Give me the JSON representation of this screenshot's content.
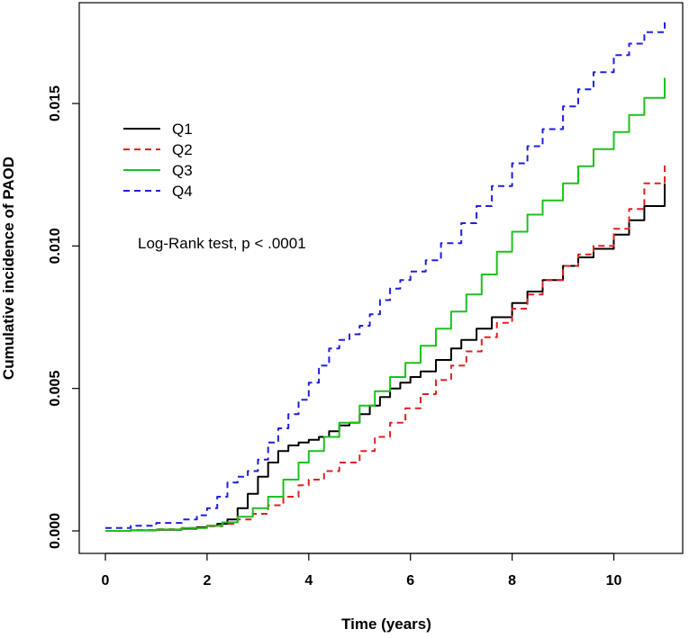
{
  "chart_data": {
    "type": "line",
    "title": "",
    "xlabel": "Time (years)",
    "ylabel": "Cumulative incidence of PAOD",
    "xlim": [
      0,
      11
    ],
    "ylim": [
      0,
      0.018
    ],
    "x_ticks": [
      0,
      2,
      4,
      6,
      8,
      10
    ],
    "x_tick_labels": [
      "0",
      "2",
      "4",
      "6",
      "8",
      "10"
    ],
    "y_ticks": [
      0,
      0.005,
      0.01,
      0.015
    ],
    "y_tick_labels": [
      "0.000",
      "0.005",
      "0.010",
      "0.015"
    ],
    "annotation": "Log-Rank test, p < .0001",
    "legend_position": "top-left",
    "series": [
      {
        "name": "Q1",
        "color": "#000000",
        "dash": "solid",
        "x": [
          0,
          0.5,
          1.0,
          1.5,
          1.8,
          2.0,
          2.2,
          2.4,
          2.6,
          2.8,
          3.0,
          3.2,
          3.4,
          3.6,
          3.8,
          4.0,
          4.2,
          4.4,
          4.6,
          4.8,
          5.0,
          5.2,
          5.4,
          5.6,
          5.8,
          6.0,
          6.2,
          6.5,
          6.8,
          7.0,
          7.3,
          7.6,
          8.0,
          8.3,
          8.6,
          9.0,
          9.3,
          9.6,
          10.0,
          10.3,
          10.6,
          11.0
        ],
        "y": [
          0,
          2e-05,
          4e-05,
          8e-05,
          0.00013,
          0.00018,
          0.00025,
          0.0004,
          0.0008,
          0.0013,
          0.0019,
          0.0024,
          0.0028,
          0.003,
          0.0031,
          0.0032,
          0.0033,
          0.0035,
          0.0037,
          0.0038,
          0.0041,
          0.0044,
          0.0047,
          0.005,
          0.0052,
          0.0054,
          0.0056,
          0.006,
          0.0064,
          0.0067,
          0.0071,
          0.0075,
          0.008,
          0.0084,
          0.0088,
          0.0093,
          0.0096,
          0.0099,
          0.0104,
          0.0109,
          0.0114,
          0.0122
        ]
      },
      {
        "name": "Q2",
        "color": "#e0201f",
        "dash": "dashed",
        "x": [
          0,
          0.5,
          1.0,
          1.5,
          2.0,
          2.3,
          2.6,
          2.9,
          3.2,
          3.5,
          3.8,
          4.0,
          4.3,
          4.6,
          5.0,
          5.3,
          5.6,
          5.9,
          6.2,
          6.5,
          6.8,
          7.1,
          7.4,
          7.7,
          8.0,
          8.3,
          8.6,
          9.0,
          9.3,
          9.6,
          10.0,
          10.3,
          10.6,
          11.0
        ],
        "y": [
          0,
          3e-05,
          6e-05,
          0.0001,
          0.00016,
          0.00025,
          0.0004,
          0.0006,
          0.0009,
          0.0012,
          0.0016,
          0.0018,
          0.0021,
          0.0024,
          0.0028,
          0.0033,
          0.0038,
          0.0043,
          0.0048,
          0.0053,
          0.0058,
          0.0063,
          0.0068,
          0.0073,
          0.0078,
          0.0083,
          0.0088,
          0.0093,
          0.0097,
          0.01,
          0.0106,
          0.0113,
          0.0122,
          0.0129
        ]
      },
      {
        "name": "Q3",
        "color": "#1fc01f",
        "dash": "solid",
        "x": [
          0,
          0.5,
          1.0,
          1.5,
          2.0,
          2.3,
          2.6,
          2.9,
          3.2,
          3.5,
          3.8,
          4.0,
          4.3,
          4.6,
          5.0,
          5.3,
          5.6,
          5.9,
          6.2,
          6.5,
          6.8,
          7.1,
          7.4,
          7.7,
          8.0,
          8.3,
          8.6,
          9.0,
          9.3,
          9.6,
          10.0,
          10.3,
          10.6,
          11.0
        ],
        "y": [
          0,
          2e-05,
          5e-05,
          0.0001,
          0.00018,
          0.0003,
          0.0005,
          0.0008,
          0.0012,
          0.0018,
          0.0024,
          0.0028,
          0.0033,
          0.0038,
          0.0044,
          0.0049,
          0.0054,
          0.0059,
          0.0065,
          0.0071,
          0.0077,
          0.0083,
          0.009,
          0.0098,
          0.0105,
          0.0111,
          0.0116,
          0.0122,
          0.0128,
          0.0134,
          0.014,
          0.0146,
          0.0152,
          0.0159
        ]
      },
      {
        "name": "Q4",
        "color": "#1f1fe0",
        "dash": "dashed",
        "x": [
          0,
          0.5,
          1.0,
          1.5,
          1.8,
          2.0,
          2.2,
          2.4,
          2.6,
          2.8,
          3.0,
          3.2,
          3.4,
          3.6,
          3.8,
          4.0,
          4.2,
          4.4,
          4.6,
          4.8,
          5.0,
          5.2,
          5.4,
          5.6,
          5.8,
          6.0,
          6.3,
          6.6,
          7.0,
          7.3,
          7.6,
          8.0,
          8.3,
          8.6,
          9.0,
          9.3,
          9.6,
          10.0,
          10.3,
          10.6,
          11.0
        ],
        "y": [
          0.0001,
          0.00018,
          0.00028,
          0.0004,
          0.00055,
          0.0008,
          0.0012,
          0.0017,
          0.0019,
          0.0021,
          0.0025,
          0.0031,
          0.0036,
          0.0041,
          0.0046,
          0.0052,
          0.0058,
          0.0064,
          0.0067,
          0.0069,
          0.0072,
          0.0076,
          0.0081,
          0.0085,
          0.0088,
          0.0091,
          0.0095,
          0.0101,
          0.0108,
          0.0114,
          0.0121,
          0.0129,
          0.0135,
          0.0141,
          0.0149,
          0.0155,
          0.0161,
          0.0167,
          0.0171,
          0.0175,
          0.0179
        ]
      }
    ]
  }
}
